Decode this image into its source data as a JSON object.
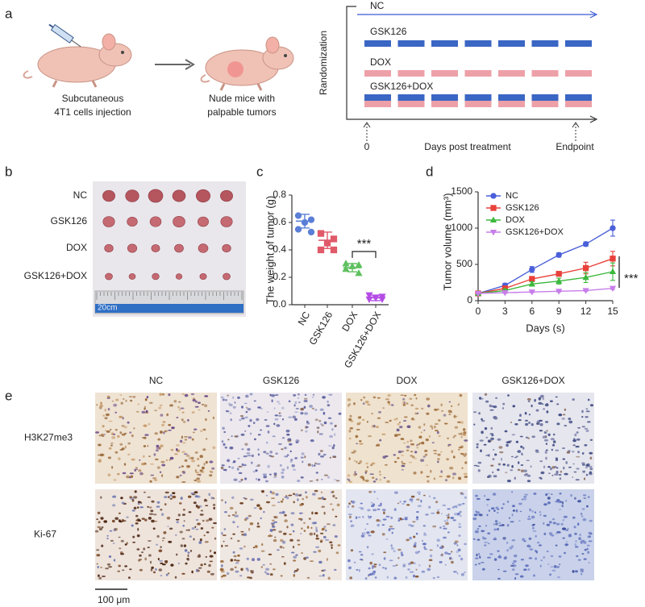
{
  "panel_labels": [
    "a",
    "b",
    "c",
    "d",
    "e"
  ],
  "schematic": {
    "steps": [
      {
        "lines": [
          "Subcutaneous",
          "4T1 cells injection"
        ]
      },
      {
        "lines": [
          "Nude mice with",
          "palpable tumors"
        ]
      }
    ],
    "y_axis_label": "Randomization",
    "groups": [
      "NC",
      "GSK126",
      "DOX",
      "GSK126+DOX"
    ],
    "start": "0",
    "x_axis_label": "Days post treatment",
    "end": "Endpoint"
  },
  "photo": {
    "rows": [
      "NC",
      "GSK126",
      "DOX",
      "GSK126+DOX"
    ],
    "ruler_label": "20cm"
  },
  "chart_data": [
    {
      "type": "dot",
      "ylabel": "The weight of tumor (g)",
      "categories": [
        "NC",
        "GSK126",
        "DOX",
        "GSK126+DOX"
      ],
      "colors": [
        "#5b7fd6",
        "#e05a6a",
        "#5fc05f",
        "#b44ce6"
      ],
      "markers": [
        "circle",
        "square",
        "triangle-up",
        "triangle-down"
      ],
      "values": [
        [
          0.65,
          0.62,
          0.6,
          0.55,
          0.53
        ],
        [
          0.52,
          0.48,
          0.45,
          0.4,
          0.4
        ],
        [
          0.3,
          0.29,
          0.28,
          0.26,
          0.23
        ],
        [
          0.07,
          0.06,
          0.05,
          0.04,
          0.04
        ]
      ],
      "means": [
        0.61,
        0.47,
        0.27,
        0.05
      ],
      "sds": [
        0.05,
        0.06,
        0.03,
        0.02
      ],
      "ylim": [
        0,
        0.8
      ],
      "yticks": [
        {
          "value": 0,
          "label": "0.0"
        },
        0.2,
        0.4,
        0.6,
        0.8
      ],
      "annotation": "***"
    },
    {
      "type": "line",
      "ylabel": "Tumor volume (mm³)",
      "xlabel": "Days (s)",
      "x": [
        0,
        3,
        6,
        9,
        12,
        15
      ],
      "xlim": [
        0,
        15
      ],
      "xticks": [
        0,
        3,
        6,
        9,
        12,
        15
      ],
      "ylim": [
        0,
        1500
      ],
      "yticks": [
        0,
        500,
        1000,
        1500
      ],
      "legend": "upper left",
      "series": [
        {
          "name": "NC",
          "color": "#4a5fd9",
          "marker": "circle",
          "values": [
            100,
            210,
            430,
            630,
            780,
            1000
          ],
          "errors": [
            20,
            30,
            40,
            30,
            30,
            110
          ]
        },
        {
          "name": "GSK126",
          "color": "#e8413a",
          "marker": "square",
          "values": [
            100,
            170,
            300,
            370,
            450,
            580
          ],
          "errors": [
            10,
            20,
            30,
            30,
            80,
            100
          ]
        },
        {
          "name": "DOX",
          "color": "#3cb83c",
          "marker": "triangle-up",
          "values": [
            100,
            140,
            230,
            270,
            320,
            400
          ],
          "errors": [
            10,
            20,
            30,
            40,
            70,
            120
          ]
        },
        {
          "name": "GSK126+DOX",
          "color": "#c77ee8",
          "marker": "triangle-down",
          "values": [
            100,
            110,
            120,
            130,
            140,
            170
          ],
          "errors": [
            5,
            10,
            10,
            10,
            10,
            15
          ]
        }
      ],
      "annotation": "***"
    }
  ],
  "ihc": {
    "columns": [
      "NC",
      "GSK126",
      "DOX",
      "GSK126+DOX"
    ],
    "rows": [
      "H3K27me3",
      "Ki-67"
    ],
    "scale_bar": "100 μm"
  }
}
